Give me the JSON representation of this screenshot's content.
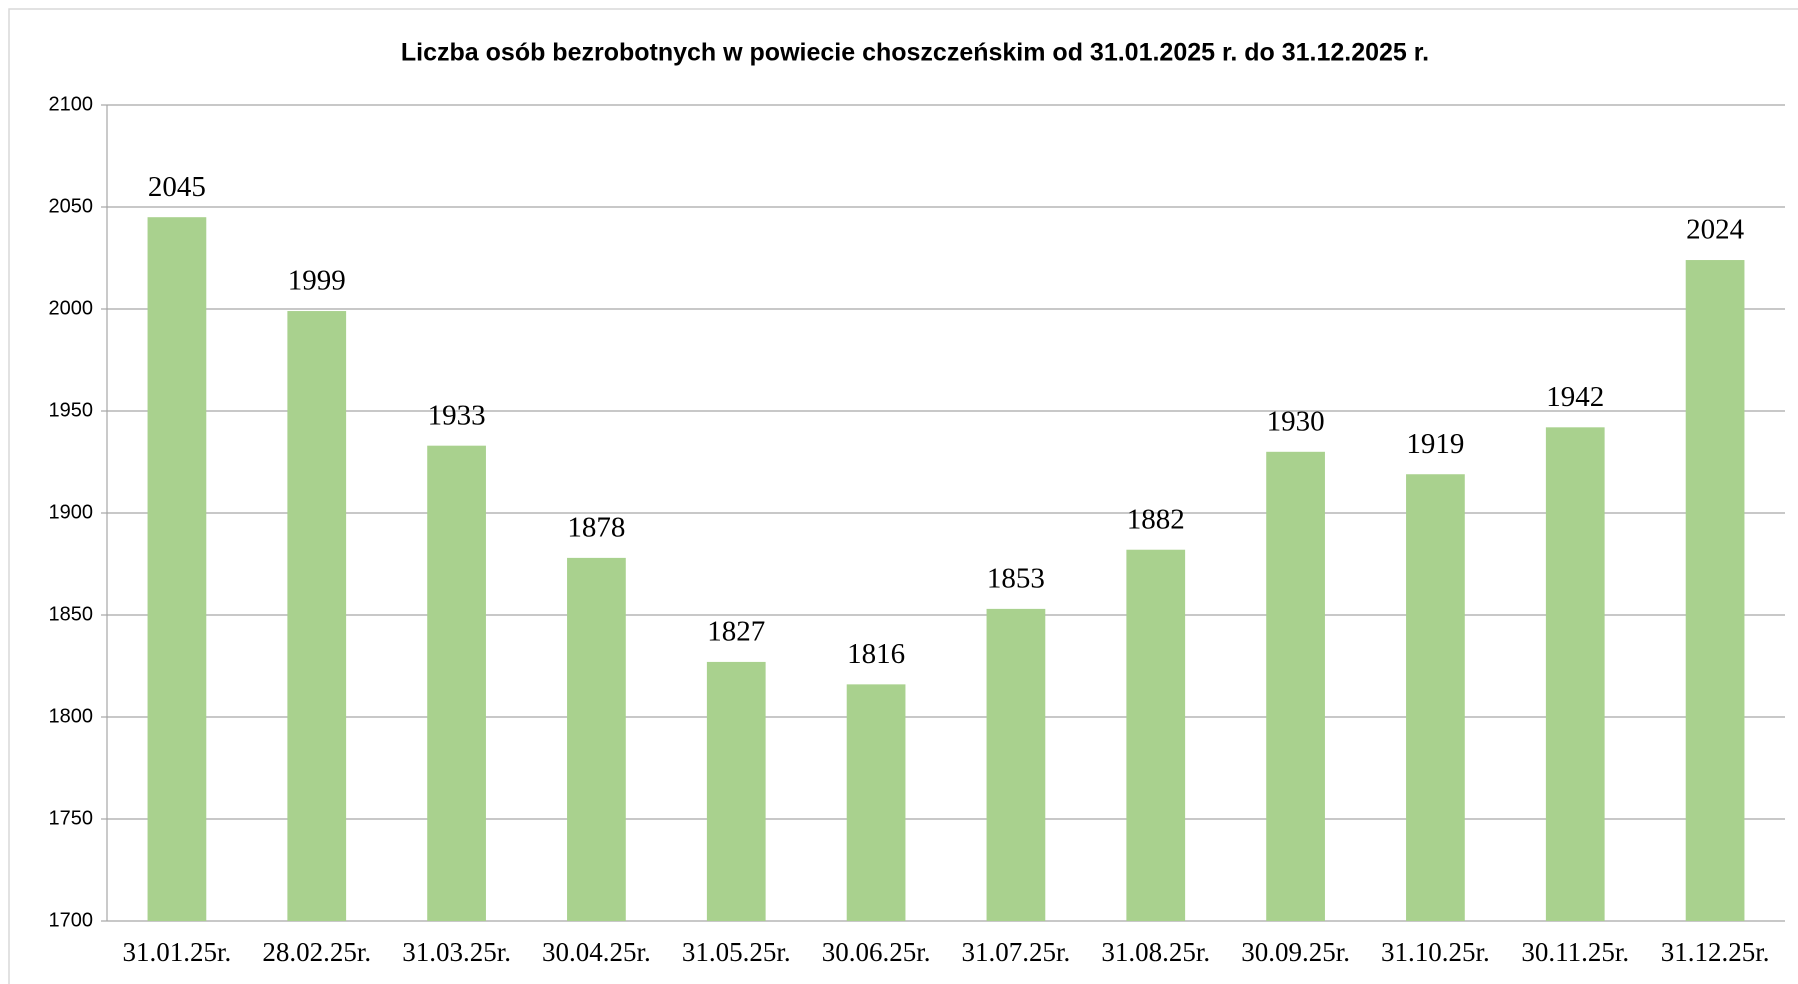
{
  "chart_data": {
    "type": "bar",
    "title": "Liczba osób bezrobotnych w powiecie choszczeńskim od 31.01.2025 r. do 31.12.2025 r.",
    "categories": [
      "31.01.25r.",
      "28.02.25r.",
      "31.03.25r.",
      "30.04.25r.",
      "31.05.25r.",
      "30.06.25r.",
      "31.07.25r.",
      "31.08.25r.",
      "30.09.25r.",
      "31.10.25r.",
      "30.11.25r.",
      "31.12.25r."
    ],
    "values": [
      2045,
      1999,
      1933,
      1878,
      1827,
      1816,
      1853,
      1882,
      1930,
      1919,
      1942,
      2024
    ],
    "color": "#a9d18e",
    "ylim": [
      1700,
      2100
    ],
    "yticks": [
      1700,
      1750,
      1800,
      1850,
      1900,
      1950,
      2000,
      2050,
      2100
    ],
    "grid": true
  }
}
